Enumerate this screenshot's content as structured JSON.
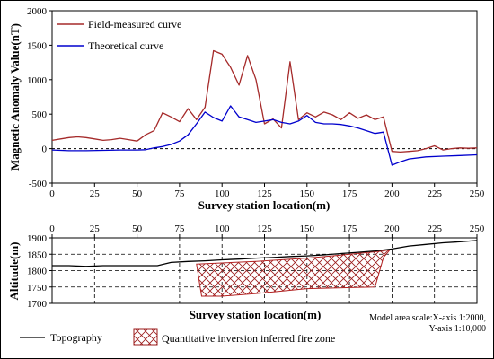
{
  "chart_data": [
    {
      "type": "line",
      "title": "",
      "xlabel": "Survey station location(m)",
      "ylabel": "Magnetic Anomaly Value(nT)",
      "xlim": [
        0,
        250
      ],
      "ylim": [
        -500,
        2000
      ],
      "x_ticks": [
        0,
        25,
        50,
        75,
        100,
        125,
        150,
        175,
        200,
        225,
        250
      ],
      "y_ticks": [
        -500,
        0,
        500,
        1000,
        1500,
        2000
      ],
      "reference_line": 0,
      "legend_position": "top-left",
      "series": [
        {
          "name": "Field-measured curve",
          "color": "#a52a2a",
          "x": [
            0,
            5,
            10,
            15,
            20,
            25,
            30,
            35,
            40,
            45,
            50,
            55,
            60,
            65,
            70,
            75,
            80,
            85,
            90,
            95,
            100,
            105,
            110,
            115,
            120,
            125,
            130,
            135,
            140,
            145,
            150,
            155,
            160,
            165,
            170,
            175,
            180,
            185,
            190,
            195,
            200,
            205,
            210,
            215,
            220,
            225,
            230,
            235,
            240,
            245,
            250
          ],
          "y": [
            120,
            140,
            160,
            170,
            160,
            140,
            120,
            130,
            150,
            130,
            110,
            200,
            260,
            520,
            460,
            390,
            580,
            420,
            600,
            1420,
            1370,
            1180,
            920,
            1350,
            1000,
            360,
            430,
            300,
            1260,
            420,
            520,
            460,
            530,
            490,
            420,
            520,
            440,
            490,
            420,
            460,
            -40,
            -50,
            -40,
            -30,
            0,
            40,
            -20,
            0,
            10,
            5,
            10
          ]
        },
        {
          "name": "Theoretical curve",
          "color": "#0000cd",
          "x": [
            0,
            10,
            20,
            30,
            40,
            50,
            55,
            60,
            65,
            70,
            75,
            80,
            85,
            90,
            95,
            100,
            105,
            110,
            115,
            120,
            125,
            130,
            135,
            140,
            145,
            150,
            155,
            160,
            165,
            170,
            175,
            180,
            185,
            190,
            195,
            200,
            205,
            210,
            220,
            230,
            240,
            250
          ],
          "y": [
            -20,
            -30,
            -30,
            -25,
            -20,
            -20,
            -15,
            10,
            30,
            60,
            110,
            200,
            360,
            530,
            450,
            400,
            620,
            460,
            420,
            380,
            400,
            420,
            380,
            360,
            400,
            480,
            380,
            360,
            360,
            350,
            330,
            300,
            260,
            220,
            240,
            -240,
            -190,
            -150,
            -120,
            -110,
            -100,
            -90
          ]
        }
      ]
    },
    {
      "type": "area",
      "title": "",
      "xlabel": "Survey station location(m)",
      "ylabel": "Altitude(m)",
      "xlim": [
        0,
        250
      ],
      "ylim": [
        1700,
        1900
      ],
      "x_ticks": [
        0,
        25,
        50,
        75,
        100,
        125,
        150,
        175,
        200,
        225,
        250
      ],
      "y_ticks": [
        1700,
        1750,
        1800,
        1850,
        1900
      ],
      "legend_position": "bottom",
      "series": [
        {
          "name": "Topography",
          "color": "#000000",
          "x": [
            0,
            10,
            20,
            30,
            40,
            50,
            60,
            62,
            70,
            80,
            90,
            100,
            110,
            120,
            130,
            140,
            150,
            160,
            170,
            180,
            190,
            200,
            210,
            220,
            230,
            240,
            250
          ],
          "y": [
            1815,
            1815,
            1813,
            1815,
            1815,
            1815,
            1815,
            1815,
            1825,
            1828,
            1830,
            1833,
            1835,
            1838,
            1840,
            1843,
            1845,
            1848,
            1852,
            1856,
            1860,
            1866,
            1875,
            1880,
            1885,
            1888,
            1892
          ]
        },
        {
          "name": "Quantitative inversion inferred fire zone",
          "color": "#b22222",
          "polygon_x": [
            85,
            120,
            150,
            175,
            195,
            199,
            195,
            190,
            150,
            120,
            100,
            88
          ],
          "polygon_y": [
            1820,
            1828,
            1838,
            1850,
            1860,
            1865,
            1840,
            1750,
            1745,
            1730,
            1722,
            1722
          ]
        }
      ]
    }
  ],
  "scale_note": {
    "line1": "Model area scale:X-axis 1:2000,",
    "line2": "Y-axis  1:10,000"
  }
}
